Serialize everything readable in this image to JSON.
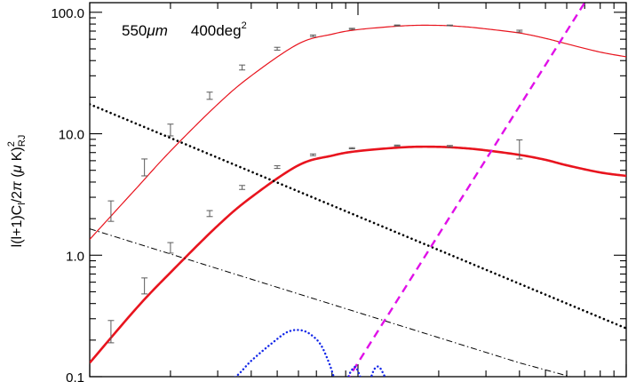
{
  "chart_data": {
    "type": "line",
    "title": "",
    "annotation": {
      "wavelength": "550",
      "wavelength_unit": "μm",
      "area": "400deg",
      "area_exponent": "2"
    },
    "ylabel": {
      "main": "l(l+1)C",
      "sub1": "l",
      "mid": "/2",
      "pi": "π",
      "paren": " (",
      "mu": "μ",
      "unit": " K)",
      "sup": "2",
      "sub2": "RJ"
    },
    "xlabel": "",
    "xscale": "log",
    "yscale": "log",
    "xlim": [
      10,
      1000
    ],
    "ylim": [
      0.1,
      120
    ],
    "ytick_labels": [
      {
        "value": 100,
        "label": "100.0"
      },
      {
        "value": 10,
        "label": "10.0"
      },
      {
        "value": 1,
        "label": "1.0"
      },
      {
        "value": 0.1,
        "label": "0.1"
      }
    ],
    "series": [
      {
        "style": "thin-solid",
        "color": "#e8141e",
        "x": [
          10,
          15,
          20,
          30,
          40,
          60,
          80,
          100,
          150,
          200,
          250,
          300,
          400,
          500,
          600,
          800,
          1000
        ],
        "y": [
          1.35,
          3.6,
          7.2,
          17.5,
          30,
          55,
          66,
          72,
          77.5,
          78,
          76,
          73,
          67.5,
          61,
          55,
          47,
          43
        ]
      },
      {
        "style": "thick-solid",
        "color": "#e8141e",
        "x": [
          10,
          15,
          20,
          30,
          40,
          60,
          80,
          100,
          150,
          200,
          250,
          300,
          400,
          500,
          600,
          800,
          1000
        ],
        "y": [
          0.13,
          0.37,
          0.72,
          1.75,
          3.0,
          5.5,
          6.6,
          7.2,
          7.75,
          7.8,
          7.6,
          7.3,
          6.7,
          6.1,
          5.5,
          4.8,
          4.5
        ]
      },
      {
        "style": "dotted",
        "color": "#000000",
        "x": [
          10,
          1000
        ],
        "y": [
          17.5,
          0.25
        ]
      },
      {
        "style": "dash-dot",
        "color": "#000000",
        "x": [
          10,
          400,
          1000
        ],
        "y": [
          1.65,
          0.13,
          0.075
        ]
      },
      {
        "style": "dashed",
        "color": "#e010e8",
        "x": [
          90,
          700
        ],
        "y": [
          0.09,
          120
        ]
      },
      {
        "style": "blue-dotted",
        "color": "#1428e8",
        "x": [
          30,
          35,
          40,
          48,
          55,
          62,
          68,
          73,
          78,
          82,
          86,
          90,
          94,
          98,
          102,
          106,
          110,
          115,
          120,
          126,
          132
        ],
        "y": [
          0.085,
          0.1,
          0.135,
          0.19,
          0.235,
          0.24,
          0.215,
          0.18,
          0.13,
          0.095,
          0.08,
          0.09,
          0.11,
          0.12,
          0.1,
          0.085,
          0.09,
          0.115,
          0.12,
          0.1,
          0.085
        ]
      }
    ],
    "error_bars": [
      {
        "color": "#5a5a5a",
        "points": [
          {
            "x": 12,
            "y": 2.4,
            "lo": 1.9,
            "hi": 2.8
          },
          {
            "x": 16,
            "y": 5.3,
            "lo": 4.5,
            "hi": 6.2
          },
          {
            "x": 20,
            "y": 10.8,
            "lo": 9.6,
            "hi": 12.0
          },
          {
            "x": 28,
            "y": 20.5,
            "lo": 19.2,
            "hi": 22.0
          },
          {
            "x": 37,
            "y": 35,
            "lo": 33.5,
            "hi": 36.8
          },
          {
            "x": 50,
            "y": 50,
            "lo": 48.8,
            "hi": 51.5
          },
          {
            "x": 68,
            "y": 64,
            "lo": 63.0,
            "hi": 65.0
          },
          {
            "x": 95,
            "y": 73,
            "lo": 72.3,
            "hi": 73.8
          },
          {
            "x": 140,
            "y": 78,
            "lo": 77.4,
            "hi": 78.6
          },
          {
            "x": 220,
            "y": 78,
            "lo": 77.5,
            "hi": 78.5
          },
          {
            "x": 400,
            "y": 70,
            "lo": 68.8,
            "hi": 71.2
          }
        ]
      },
      {
        "color": "#5a5a5a",
        "points": [
          {
            "x": 12,
            "y": 0.24,
            "lo": 0.19,
            "hi": 0.29
          },
          {
            "x": 16,
            "y": 0.56,
            "lo": 0.48,
            "hi": 0.65
          },
          {
            "x": 20,
            "y": 1.15,
            "lo": 1.04,
            "hi": 1.27
          },
          {
            "x": 28,
            "y": 2.2,
            "lo": 2.08,
            "hi": 2.33
          },
          {
            "x": 37,
            "y": 3.6,
            "lo": 3.48,
            "hi": 3.75
          },
          {
            "x": 50,
            "y": 5.3,
            "lo": 5.18,
            "hi": 5.45
          },
          {
            "x": 68,
            "y": 6.7,
            "lo": 6.6,
            "hi": 6.82
          },
          {
            "x": 95,
            "y": 7.6,
            "lo": 7.52,
            "hi": 7.68
          },
          {
            "x": 140,
            "y": 8.0,
            "lo": 7.93,
            "hi": 8.07
          },
          {
            "x": 220,
            "y": 7.9,
            "lo": 7.8,
            "hi": 8.0
          },
          {
            "x": 400,
            "y": 7.4,
            "lo": 6.2,
            "hi": 8.9
          }
        ]
      }
    ]
  }
}
